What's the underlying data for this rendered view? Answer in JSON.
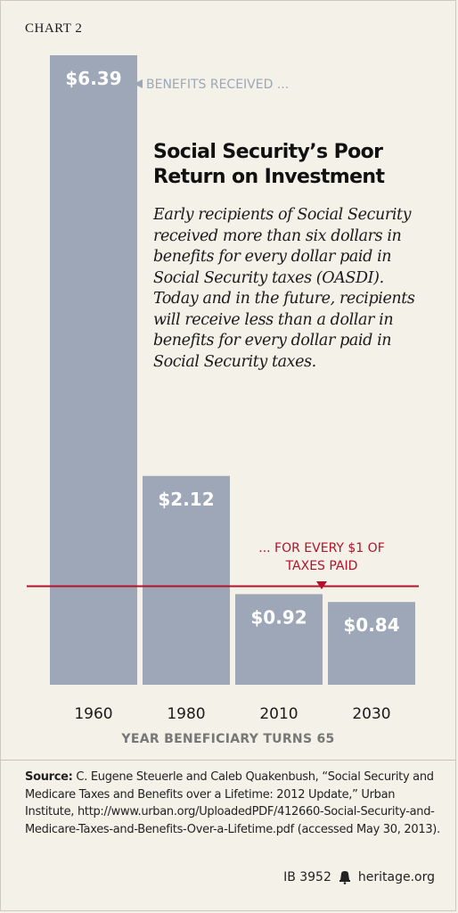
{
  "header": {
    "chart_label": "CHART 2"
  },
  "annotations": {
    "benefits": "BENEFITS RECEIVED ...",
    "taxes_line1": "... FOR EVERY $1 OF",
    "taxes_line2": "TAXES PAID"
  },
  "title": {
    "line1": "Social Security’s Poor",
    "line2": "Return on Investment"
  },
  "description": "Early recipients of Social Security received more than six dollars in benefits for every dollar paid in Social Security taxes (OASDI). Today and in the future, recipients will receive less than a dollar in benefits for every dollar  paid in Social Security taxes.",
  "source": {
    "label": "Source:",
    "text": " C. Eugene Steuerle and Caleb Quakenbush, “Social Security and Medicare Taxes and Benefits over a Lifetime: 2012 Update,” Urban Institute, http://www.urban.org/UploadedPDF/412660-Social-Security-and-Medicare-Taxes-and-Benefits-Over-a-Lifetime.pdf (accessed May 30, 2013)."
  },
  "footer": {
    "ib": "IB 3952",
    "site": "heritage.org"
  },
  "colors": {
    "bar": "#9da7b7",
    "reference_line": "#b3122a",
    "background": "#f4f1e9"
  },
  "chart_data": {
    "type": "bar",
    "categories": [
      "1960",
      "1980",
      "2010",
      "2030"
    ],
    "values": [
      6.39,
      2.12,
      0.92,
      0.84
    ],
    "value_labels": [
      "$6.39",
      "$2.12",
      "$0.92",
      "$0.84"
    ],
    "xlabel": "YEAR BENEFICIARY TURNS 65",
    "ylabel": "",
    "ylim": [
      0,
      6.39
    ],
    "reference_line": 1,
    "grid": false
  }
}
